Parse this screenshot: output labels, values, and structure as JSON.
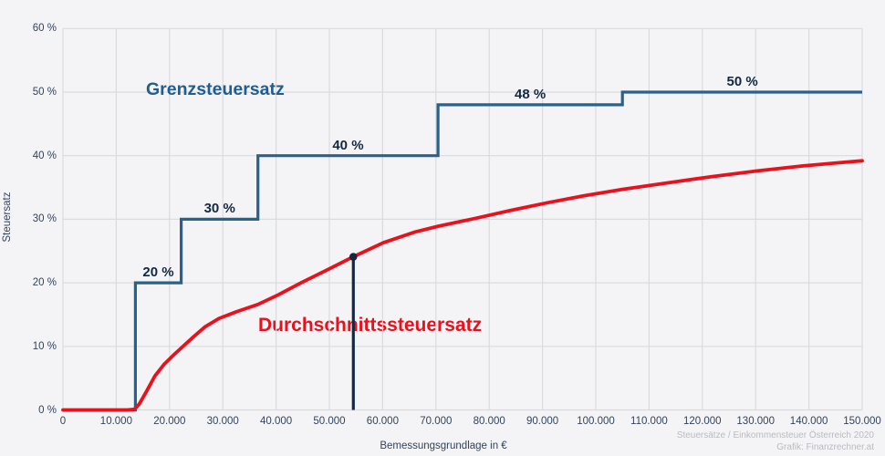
{
  "page": {
    "background": "#f4f4f6"
  },
  "chart_data": {
    "type": "line",
    "title": "",
    "subtitle": "",
    "grid": true,
    "legend_position": "inline-annotations",
    "x_axis": {
      "label": "Bemessungsgrundlage in €",
      "min": 0,
      "max": 150000,
      "tick_interval": 10000,
      "tick_values": [
        0,
        10000,
        20000,
        30000,
        40000,
        50000,
        60000,
        70000,
        80000,
        90000,
        100000,
        110000,
        120000,
        130000,
        140000,
        150000
      ],
      "tick_labels": [
        "0",
        "10.000",
        "20.000",
        "30.000",
        "40.000",
        "50.000",
        "60.000",
        "70.000",
        "80.000",
        "90.000",
        "100.000",
        "110.000",
        "120.000",
        "130.000",
        "140.000",
        "150.000"
      ]
    },
    "y_axis": {
      "label": "Steuersatz",
      "min": 0,
      "max": 60,
      "tick_interval": 10,
      "tick_values": [
        0,
        10,
        20,
        30,
        40,
        50,
        60
      ],
      "tick_labels": [
        "0 %",
        "10 %",
        "20 %",
        "30 %",
        "40 %",
        "50 %",
        "60 %"
      ]
    },
    "series": [
      {
        "name": "Grenzsteuersatz",
        "type": "step",
        "color": "#29618e"
      },
      {
        "name": "Durchschnittssteuersatz",
        "type": "curve",
        "color": "#e8111c"
      }
    ],
    "marginal_steps": [
      {
        "from": 0,
        "to": 13600,
        "rate": 0,
        "label": ""
      },
      {
        "from": 13600,
        "to": 22200,
        "rate": 20,
        "label": "20 %"
      },
      {
        "from": 22200,
        "to": 36600,
        "rate": 30,
        "label": "30 %"
      },
      {
        "from": 36600,
        "to": 70400,
        "rate": 40,
        "label": "40 %"
      },
      {
        "from": 70400,
        "to": 105000,
        "rate": 48,
        "label": "48 %"
      },
      {
        "from": 105000,
        "to": 150000,
        "rate": 50,
        "label": "50 %"
      }
    ],
    "average_curve": [
      [
        0,
        0
      ],
      [
        12000,
        0
      ],
      [
        13400,
        0.1
      ],
      [
        14300,
        0.9
      ],
      [
        15600,
        2.8
      ],
      [
        17300,
        5.4
      ],
      [
        19000,
        7.2
      ],
      [
        20700,
        8.6
      ],
      [
        22400,
        9.9
      ],
      [
        24500,
        11.5
      ],
      [
        26700,
        13.1
      ],
      [
        29300,
        14.4
      ],
      [
        32700,
        15.5
      ],
      [
        36600,
        16.6
      ],
      [
        40400,
        18.1
      ],
      [
        44700,
        20.0
      ],
      [
        49500,
        22.0
      ],
      [
        54500,
        24.1
      ],
      [
        60100,
        26.3
      ],
      [
        66100,
        28.0
      ],
      [
        70400,
        28.9
      ],
      [
        77200,
        30.1
      ],
      [
        84100,
        31.4
      ],
      [
        90900,
        32.6
      ],
      [
        97800,
        33.7
      ],
      [
        105000,
        34.7
      ],
      [
        113200,
        35.7
      ],
      [
        121700,
        36.7
      ],
      [
        130300,
        37.6
      ],
      [
        138900,
        38.4
      ],
      [
        145700,
        38.9
      ],
      [
        150000,
        39.2
      ]
    ],
    "marker": {
      "x": 54500,
      "pct": 24.1
    },
    "annotations": {
      "marginal": {
        "text": "Grenzsteuersatz"
      },
      "average": {
        "text": "Durchschnittssteuersatz"
      }
    },
    "colors": {
      "background": "#f4f4f6",
      "grid": "#dadbde",
      "marginal": "#29618e",
      "average": "#e8111c",
      "marker": "#14293f",
      "tick_text": "#32435a",
      "step_label_text": "#12293f",
      "marginal_title_text": "#215d91",
      "attribution_text": "#b8bbc1"
    }
  },
  "attribution": {
    "line1": "Steuersätze / Einkommensteuer Österreich 2020",
    "line2": "Grafik: Finanzrechner.at"
  }
}
